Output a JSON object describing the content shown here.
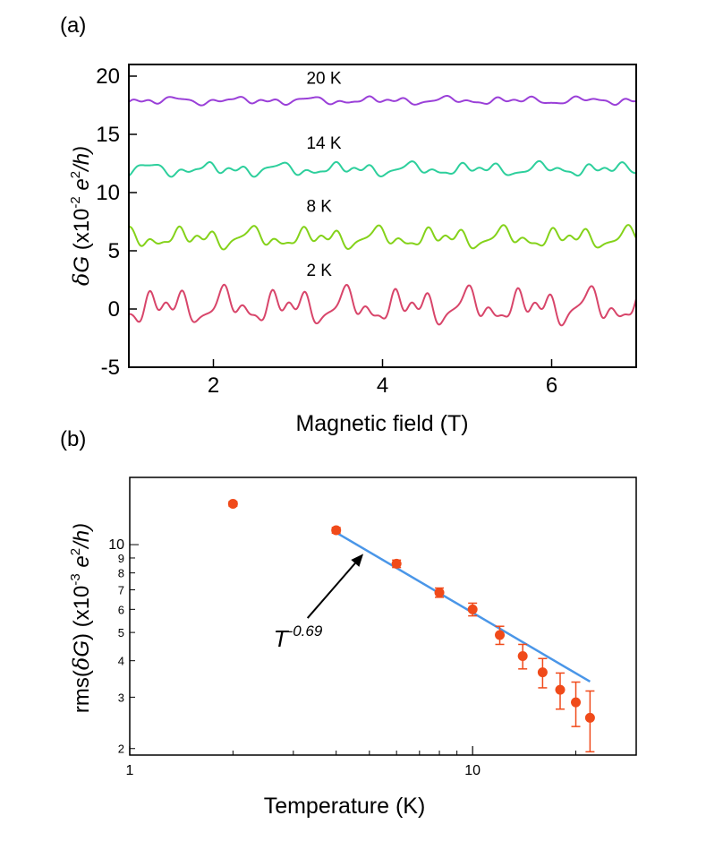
{
  "chart_data": [
    {
      "panel_label": "(a)",
      "type": "line",
      "xlabel": "Magnetic field (T)",
      "ylabel_delta": "δ",
      "ylabel_G": "G",
      "ylabel_unit_pre": " (x10",
      "ylabel_unit_exp": "-2",
      "ylabel_unit_e": " e",
      "ylabel_unit_exp2": "2",
      "ylabel_unit_post": "/h)",
      "xlim": [
        1,
        7
      ],
      "ylim": [
        -5,
        21
      ],
      "xticks": [
        2,
        4,
        6
      ],
      "xtick_labels": [
        "2",
        "4",
        "6"
      ],
      "yticks": [
        -5,
        0,
        5,
        10,
        15,
        20
      ],
      "ytick_labels": [
        "-5",
        "0",
        "5",
        "10",
        "15",
        "20"
      ],
      "series": [
        {
          "name": "20 K",
          "label": "20 K",
          "offset": 17.9,
          "amplitude": 0.35,
          "color": "#9a3fd8",
          "label_x": 3.1,
          "label_y": 19.9
        },
        {
          "name": "14 K",
          "label": "14 K",
          "offset": 12.0,
          "amplitude": 0.6,
          "color": "#2dcf9c",
          "label_x": 3.1,
          "label_y": 14.3
        },
        {
          "name": "8 K",
          "label": "8 K",
          "offset": 6.1,
          "amplitude": 0.95,
          "color": "#84d21a",
          "label_x": 3.1,
          "label_y": 8.9
        },
        {
          "name": "2 K",
          "label": "2 K",
          "offset": 0.2,
          "amplitude": 1.6,
          "color": "#d8456a",
          "label_x": 3.1,
          "label_y": 3.4
        }
      ]
    },
    {
      "panel_label": "(b)",
      "type": "scatter",
      "xscale": "log",
      "yscale": "log",
      "xlabel": "Temperature (K)",
      "ylabel_pre": "rms(",
      "ylabel_delta": "δ",
      "ylabel_G": "G",
      "ylabel_mid": ")  (x10",
      "ylabel_exp": "-3",
      "ylabel_e": " e",
      "ylabel_exp2": "2",
      "ylabel_post": "/h)",
      "xlim": [
        1,
        30
      ],
      "ylim": [
        1.9,
        17
      ],
      "xtick_labels": [
        {
          "value": 1,
          "text": "1"
        },
        {
          "value": 10,
          "text": "10"
        }
      ],
      "ytick_labels": [
        {
          "value": 2,
          "text": "2"
        },
        {
          "value": 3,
          "text": "3"
        },
        {
          "value": 4,
          "text": "4"
        },
        {
          "value": 5,
          "text": "5"
        },
        {
          "value": 6,
          "text": "6"
        },
        {
          "value": 7,
          "text": "7"
        },
        {
          "value": 8,
          "text": "8"
        },
        {
          "value": 9,
          "text": "9"
        },
        {
          "value": 10,
          "text": "10"
        }
      ],
      "points": [
        {
          "x": 2,
          "y": 13.8,
          "err": 0.25
        },
        {
          "x": 4,
          "y": 11.2,
          "err": 0.25
        },
        {
          "x": 6,
          "y": 8.6,
          "err": 0.25
        },
        {
          "x": 8,
          "y": 6.85,
          "err": 0.25
        },
        {
          "x": 10,
          "y": 6.0,
          "err": 0.3
        },
        {
          "x": 12,
          "y": 4.9,
          "err": 0.35
        },
        {
          "x": 14,
          "y": 4.15,
          "err": 0.4
        },
        {
          "x": 16,
          "y": 3.65,
          "err": 0.42
        },
        {
          "x": 18,
          "y": 3.18,
          "err": 0.45
        },
        {
          "x": 20,
          "y": 2.88,
          "err": 0.5
        },
        {
          "x": 22,
          "y": 2.55,
          "err": 0.6
        }
      ],
      "marker_color": "#f04a1a",
      "fit": {
        "exponent": -0.69,
        "x_start": 4,
        "x_end": 22,
        "y_start": 11.0,
        "color": "#4a96e8",
        "annotation_base": "T",
        "annotation_exp": "-0.69",
        "arrow_from": [
          3.3,
          5.6
        ],
        "arrow_to": [
          4.8,
          9.3
        ]
      }
    }
  ]
}
